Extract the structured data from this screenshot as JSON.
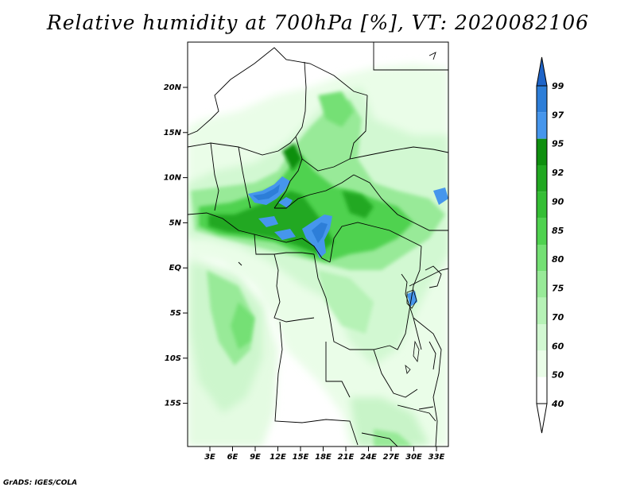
{
  "title": "Relative humidity at 700hPa [%], VT: 2020082106",
  "credit": "GrADS: IGES/COLA",
  "map": {
    "lat_ticks": [
      "20N",
      "15N",
      "10N",
      "5N",
      "EQ",
      "5S",
      "10S",
      "15S"
    ],
    "lon_ticks": [
      "3E",
      "6E",
      "9E",
      "12E",
      "15E",
      "18E",
      "21E",
      "24E",
      "27E",
      "30E",
      "33E"
    ]
  },
  "colorbar": {
    "labels": [
      "99",
      "97",
      "95",
      "92",
      "90",
      "85",
      "80",
      "75",
      "70",
      "60",
      "50",
      "40"
    ],
    "colors": [
      "#1e64c8",
      "#2d7ed8",
      "#4696ec",
      "#0f8f0f",
      "#21a821",
      "#34be34",
      "#4fd24f",
      "#74e074",
      "#98ea98",
      "#b6f2b6",
      "#d2f8d2",
      "#eafde8",
      "#ffffff"
    ],
    "arrow_top_color": "#1e64c8",
    "arrow_bottom_color": "#ffffff"
  }
}
